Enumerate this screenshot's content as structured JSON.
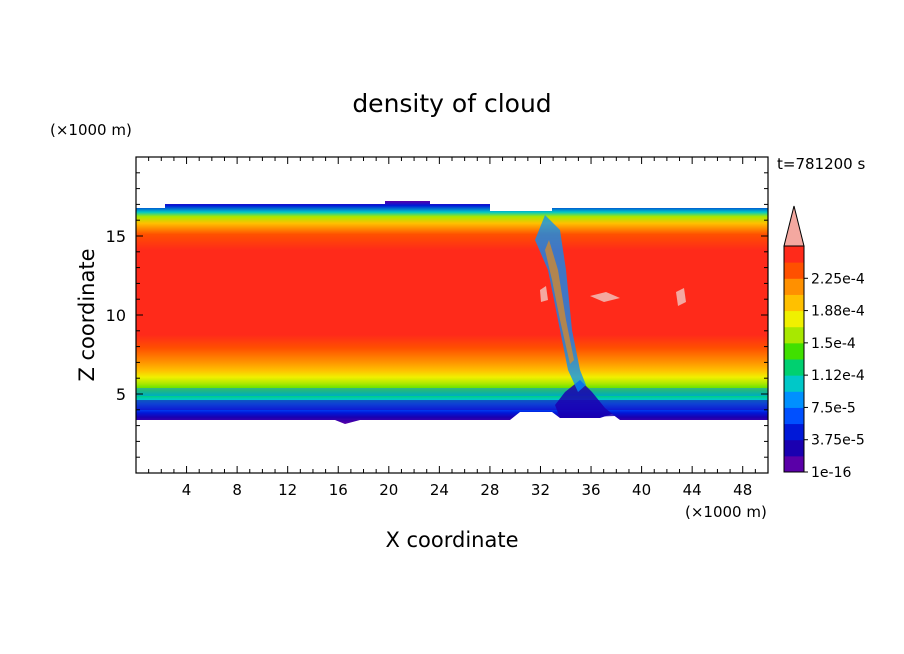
{
  "chart_data": {
    "type": "heatmap",
    "title": "density of cloud",
    "xlabel": "X coordinate",
    "ylabel": "Z coordinate",
    "x_unit": "(×1000 m)",
    "y_unit": "(×1000 m)",
    "time_label": "t=781200 s",
    "xlim": [
      0,
      50
    ],
    "ylim": [
      0,
      20
    ],
    "x_ticks": [
      4,
      8,
      12,
      16,
      20,
      24,
      28,
      32,
      36,
      40,
      44,
      48
    ],
    "y_ticks": [
      5,
      10,
      15
    ],
    "colorbar": {
      "levels": [
        "1e-16",
        "",
        "3.75e-5",
        "",
        "7.5e-5",
        "",
        "1.12e-4",
        "",
        "1.5e-4",
        "",
        "1.88e-4",
        "",
        "2.25e-4",
        ""
      ],
      "labels": [
        "1e-16",
        "3.75e-5",
        "7.5e-5",
        "1.12e-4",
        "1.5e-4",
        "1.88e-4",
        "2.25e-4"
      ],
      "colors": [
        "#5a00a8",
        "#1a00b0",
        "#0018d8",
        "#0050ff",
        "#0090ff",
        "#00c8c8",
        "#00d070",
        "#40e000",
        "#a8e800",
        "#f0f000",
        "#ffc000",
        "#ff9000",
        "#ff5000",
        "#ff2a1a"
      ],
      "overflow_color": "#f4a8a0"
    },
    "field_summary": {
      "cloud_base_km": 3.5,
      "cloud_top_km": 16.6,
      "core_value_range": "2.25e-4 and above",
      "max_core_z_range_km": [
        7,
        14
      ],
      "column_break_x_km": 33
    }
  }
}
